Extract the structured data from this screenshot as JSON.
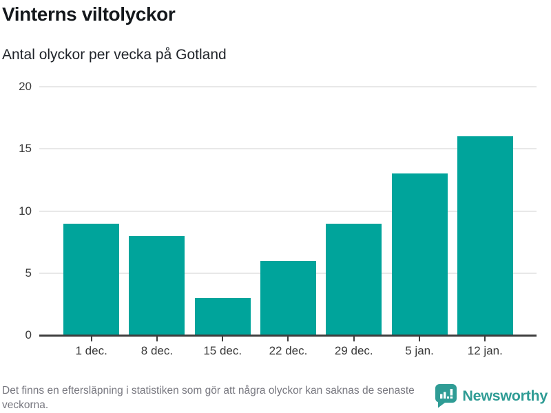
{
  "chart_data": {
    "type": "bar",
    "title": "Vinterns viltolyckor",
    "subtitle": "Antal olyckor per vecka på Gotland",
    "categories": [
      "1 dec.",
      "8 dec.",
      "15 dec.",
      "22 dec.",
      "29 dec.",
      "5 jan.",
      "12 jan."
    ],
    "values": [
      9,
      8,
      3,
      6,
      9,
      13,
      16
    ],
    "xlabel": "",
    "ylabel": "",
    "ylim": [
      0,
      20
    ],
    "yticks": [
      0,
      5,
      10,
      15,
      20
    ],
    "grid": true,
    "legend": "none",
    "bar_color": "#00a49b"
  },
  "footer": {
    "note": "Det finns en eftersläpning i statistiken som gör att några olyckor kan saknas de senaste veckorna.",
    "brand": "Newsworthy"
  },
  "colors": {
    "bar": "#00a49b",
    "brand_teal": "#2f9c95",
    "gridline": "#e8e8e8",
    "axis": "#3d3d3d",
    "axis_label": "#3a3a3a",
    "footnote_text": "#77777f"
  },
  "icons": {
    "brand_icon": "newsworthy-speech-bubble-bar-chart-icon"
  }
}
